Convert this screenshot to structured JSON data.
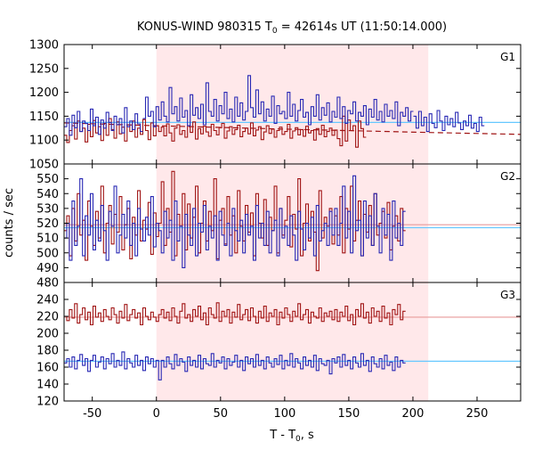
{
  "chart_data": {
    "type": "line",
    "title": "KONUS-WIND 980315 T",
    "title_sub": "0",
    "title_tail": " = 42614s UT (11:50:14.000)",
    "xlabel": "T - T",
    "xlabel_sub": "0",
    "xlabel_tail": ", s",
    "ylabel": "counts / sec",
    "xlim": [
      -72,
      284
    ],
    "xticks": [
      -50,
      0,
      50,
      100,
      150,
      200,
      250
    ],
    "shaded_interval": [
      0,
      212
    ],
    "colors": {
      "red": "#a01414",
      "blue": "#2828b4",
      "background_line": "#66c8ff",
      "shade": "#ffe8ea"
    },
    "panels": [
      {
        "name": "G1",
        "ylim": [
          1050,
          1300
        ],
        "yticks": [
          1050,
          1100,
          1150,
          1200,
          1250,
          1300
        ],
        "backgrounds": [
          {
            "color": "blue",
            "y": 1137
          }
        ],
        "dashed": [
          {
            "color": "red",
            "points": [
              [
                -72,
                1136
              ],
              [
                0,
                1130
              ],
              [
                100,
                1123
              ],
              [
                210,
                1116
              ],
              [
                284,
                1112
              ]
            ]
          }
        ],
        "series": [
          {
            "color": "red",
            "start": -72,
            "step": 2.048,
            "values": [
              1110,
              1095,
              1120,
              1130,
              1102,
              1140,
              1118,
              1125,
              1096,
              1133,
              1107,
              1141,
              1115,
              1128,
              1099,
              1135,
              1110,
              1145,
              1122,
              1104,
              1138,
              1113,
              1127,
              1098,
              1132,
              1118,
              1140,
              1106,
              1125,
              1112,
              1143,
              1120,
              1101,
              1136,
              1109,
              1130,
              1118,
              1127,
              1109,
              1134,
              1115,
              1098,
              1125,
              1132,
              1112,
              1120,
              1106,
              1130,
              1116,
              1138,
              1102,
              1124,
              1113,
              1129,
              1117,
              1108,
              1133,
              1120,
              1111,
              1126,
              1135,
              1104,
              1119,
              1128,
              1112,
              1122,
              1131,
              1107,
              1118,
              1125,
              1113,
              1136,
              1109,
              1121,
              1128,
              1101,
              1117,
              1130,
              1114,
              1123,
              1106,
              1120,
              1127,
              1112,
              1118,
              1133,
              1104,
              1119,
              1126,
              1111,
              1122,
              1108,
              1129,
              1115,
              1120,
              1100,
              1124,
              1112,
              1131,
              1107,
              1118,
              1125,
              1110,
              1121,
              1103
            ],
            "tail": [
              1088,
              1150,
              1098,
              1142,
              1120,
              1130,
              1085,
              1140,
              1124,
              1106
            ]
          },
          {
            "color": "blue",
            "start": -72,
            "step": 2.048,
            "values": [
              1128,
              1145,
              1110,
              1152,
              1126,
              1160,
              1118,
              1140,
              1135,
              1120,
              1165,
              1130,
              1148,
              1112,
              1142,
              1125,
              1158,
              1137,
              1120,
              1150,
              1132,
              1145,
              1115,
              1168,
              1128,
              1140,
              1122,
              1155,
              1134,
              1118
            ],
            "tail": [
              1150,
              1125,
              1160,
              1130,
              1148,
              1118,
              1155,
              1135,
              1126,
              1162,
              1140,
              1120,
              1150,
              1132,
              1145,
              1128,
              1158,
              1136,
              1122,
              1140,
              1130,
              1152,
              1125,
              1135,
              1118,
              1148,
              1130
            ]
          }
        ],
        "main_blue": [
          1145,
          1190,
          1150,
          1160,
          1128,
          1170,
          1142,
          1180,
          1150,
          1138,
          1210,
          1155,
          1170,
          1140,
          1188,
          1148,
          1162,
          1130,
          1195,
          1152,
          1168,
          1145,
          1175,
          1132,
          1220,
          1160,
          1150,
          1185,
          1140,
          1172,
          1155,
          1200,
          1145,
          1165,
          1138,
          1190,
          1150,
          1178,
          1142,
          1160,
          1235,
          1168,
          1148,
          1205,
          1155,
          1180,
          1140,
          1165,
          1150,
          1192,
          1135,
          1172,
          1155,
          1160,
          1145,
          1200,
          1150,
          1175,
          1140,
          1162,
          1185,
          1148,
          1158,
          1132,
          1170,
          1150,
          1195,
          1142,
          1168,
          1152,
          1178,
          1138,
          1160,
          1148,
          1190,
          1145,
          1170,
          1135,
          1162,
          1155,
          1180,
          1140,
          1158,
          1150,
          1172,
          1132,
          1165,
          1148,
          1185,
          1142,
          1160,
          1138,
          1175,
          1150,
          1162,
          1145,
          1180,
          1130,
          1158,
          1150,
          1168,
          1140,
          1160
        ]
      },
      {
        "name": "G2",
        "ylim": [
          480,
          560
        ],
        "yticks": [
          480,
          490,
          500,
          510,
          520,
          530,
          540,
          550
        ],
        "backgrounds": [
          {
            "color": "blue",
            "y": 517
          },
          {
            "color": "red",
            "y": 519
          }
        ],
        "series": [
          {
            "color": "red",
            "start": -72,
            "step": 2.048,
            "values": [
              515,
              525,
              498,
              530,
              508,
              540,
              512,
              522,
              495,
              535,
              518,
              505,
              528,
              510,
              545,
              500,
              520,
              532,
              506,
              526,
              514,
              538,
              502,
              519,
              530,
              496,
              524,
              512,
              542,
              508,
              522,
              516,
              534,
              499,
              527,
              511,
              520,
              548,
              505,
              530,
              514,
              555,
              498,
              526,
              518,
              540,
              502,
              533,
              510,
              524,
              545,
              500,
              520,
              535,
              508,
              528,
              515,
              550,
              496,
              522,
              530,
              506,
              538,
              512,
              525,
              500,
              542,
              518,
              508,
              532,
              514,
              527,
              498,
              540,
              520,
              510,
              536,
              505,
              524,
              515,
              545,
              500,
              530,
              512,
              522,
              538,
              504,
              526,
              516,
              550,
              498,
              520,
              533,
              508,
              528,
              514,
              488,
              542,
              510,
              524,
              518,
              530,
              506
            ],
            "tail": [
              525,
              512,
              538,
              500,
              530,
              516,
              545,
              508,
              522,
              535,
              498,
              526,
              514,
              532,
              505,
              540,
              512,
              520,
              528,
              510,
              534,
              502,
              518,
              525,
              508,
              530,
              515
            ]
          },
          {
            "color": "blue",
            "start": -72,
            "step": 2.048,
            "values": [
              510,
              520,
              495,
              535,
              505,
              518,
              550,
              498,
              525,
              512,
              540,
              502,
              522,
              508,
              532,
              515,
              495,
              528,
              518,
              545,
              500,
              512,
              526,
              510,
              535,
              505,
              520,
              498,
              530,
              516,
              508,
              524,
              512,
              538,
              504,
              520,
              515,
              500,
              528,
              510,
              522,
              495,
              535,
              508,
              518,
              490,
              526,
              512,
              505,
              530,
              498,
              520,
              514,
              532,
              502,
              518,
              510,
              525,
              495,
              528,
              512,
              505,
              520,
              498,
              530,
              515,
              508,
              522,
              500,
              526,
              512,
              518,
              495,
              532,
              510,
              520,
              505,
              528,
              500,
              515,
              522,
              498,
              530,
              510,
              518,
              505,
              525,
              512,
              495,
              528,
              516,
              502,
              520,
              510,
              524,
              498,
              532,
              508,
              515,
              520,
              505,
              528,
              512
            ],
            "tail": [
              530,
              505,
              520,
              545,
              510,
              528,
              500,
              552,
              515,
              522,
              498,
              535,
              510,
              525,
              505,
              540,
              518,
              500,
              530,
              512,
              526,
              495,
              535,
              510,
              520,
              505,
              528
            ]
          }
        ]
      },
      {
        "name": "G3",
        "ylim": [
          120,
          260
        ],
        "yticks": [
          120,
          140,
          160,
          180,
          200,
          220,
          240
        ],
        "backgrounds": [
          {
            "color": "red",
            "y": 219
          },
          {
            "color": "blue",
            "y": 167
          }
        ],
        "series": [
          {
            "color": "red",
            "start": -72,
            "step": 2.048,
            "values": [
              220,
              215,
              228,
              218,
              235,
              212,
              222,
              230,
              216,
              225,
              210,
              232,
              219,
              224,
              214,
              228,
              220,
              216,
              230,
              222,
              212,
              226,
              218,
              234,
              215,
              222,
              228,
              218,
              224,
              210,
              230,
              220,
              216,
              225,
              219,
              214,
              222,
              228,
              218,
              225,
              215,
              230,
              220,
              212,
              226,
              235,
              218,
              222,
              214,
              228,
              220,
              232,
              216,
              224,
              210,
              230,
              222,
              218,
              236,
              214,
              226,
              220,
              228,
              212,
              225,
              219,
              234,
              216,
              222,
              228,
              215,
              230,
              220,
              212,
              226,
              218,
              232,
              214,
              224,
              220,
              228,
              210,
              225,
              218,
              230,
              222,
              214,
              226,
              220,
              235,
              216,
              222,
              228,
              212,
              225,
              220,
              218,
              230,
              214,
              224,
              220,
              226,
              216
            ],
            "tail": [
              228,
              214,
              225,
              220,
              232,
              215,
              222,
              210,
              228,
              220,
              235,
              218,
              225,
              212,
              230,
              220,
              226,
              214,
              232,
              218,
              224,
              210,
              228,
              222,
              234,
              216,
              226
            ]
          },
          {
            "color": "blue",
            "start": -72,
            "step": 2.048,
            "values": [
              165,
              170,
              160,
              172,
              158,
              168,
              175,
              162,
              170,
              155,
              168,
              174,
              160,
              166,
              172,
              158,
              170,
              164,
              176,
              160,
              168,
              162,
              178,
              158,
              170,
              165,
              160,
              174,
              162,
              168,
              156,
              172,
              164,
              170,
              160,
              168,
              145,
              168,
              160,
              172,
              164,
              158,
              175,
              162,
              170,
              166,
              155,
              172,
              162,
              168,
              160,
              174,
              158,
              170,
              164,
              162,
              176,
              160,
              168,
              165,
              172,
              158,
              170,
              162,
              166,
              174,
              160,
              168,
              156,
              172,
              164,
              170,
              160,
              175,
              162,
              168,
              158,
              172,
              165,
              160,
              170,
              163,
              174,
              158,
              168,
              162,
              176,
              160,
              170,
              165,
              158,
              172,
              162,
              168,
              160,
              174,
              156,
              170,
              164,
              162,
              168,
              152,
              170
            ],
            "tail": [
              165,
              172,
              160,
              175,
              162,
              168,
              158,
              172,
              165,
              160,
              176,
              162,
              168,
              155,
              172,
              164,
              160,
              170,
              158,
              174,
              162,
              166,
              156,
              172,
              160,
              168,
              165
            ]
          }
        ]
      }
    ]
  }
}
